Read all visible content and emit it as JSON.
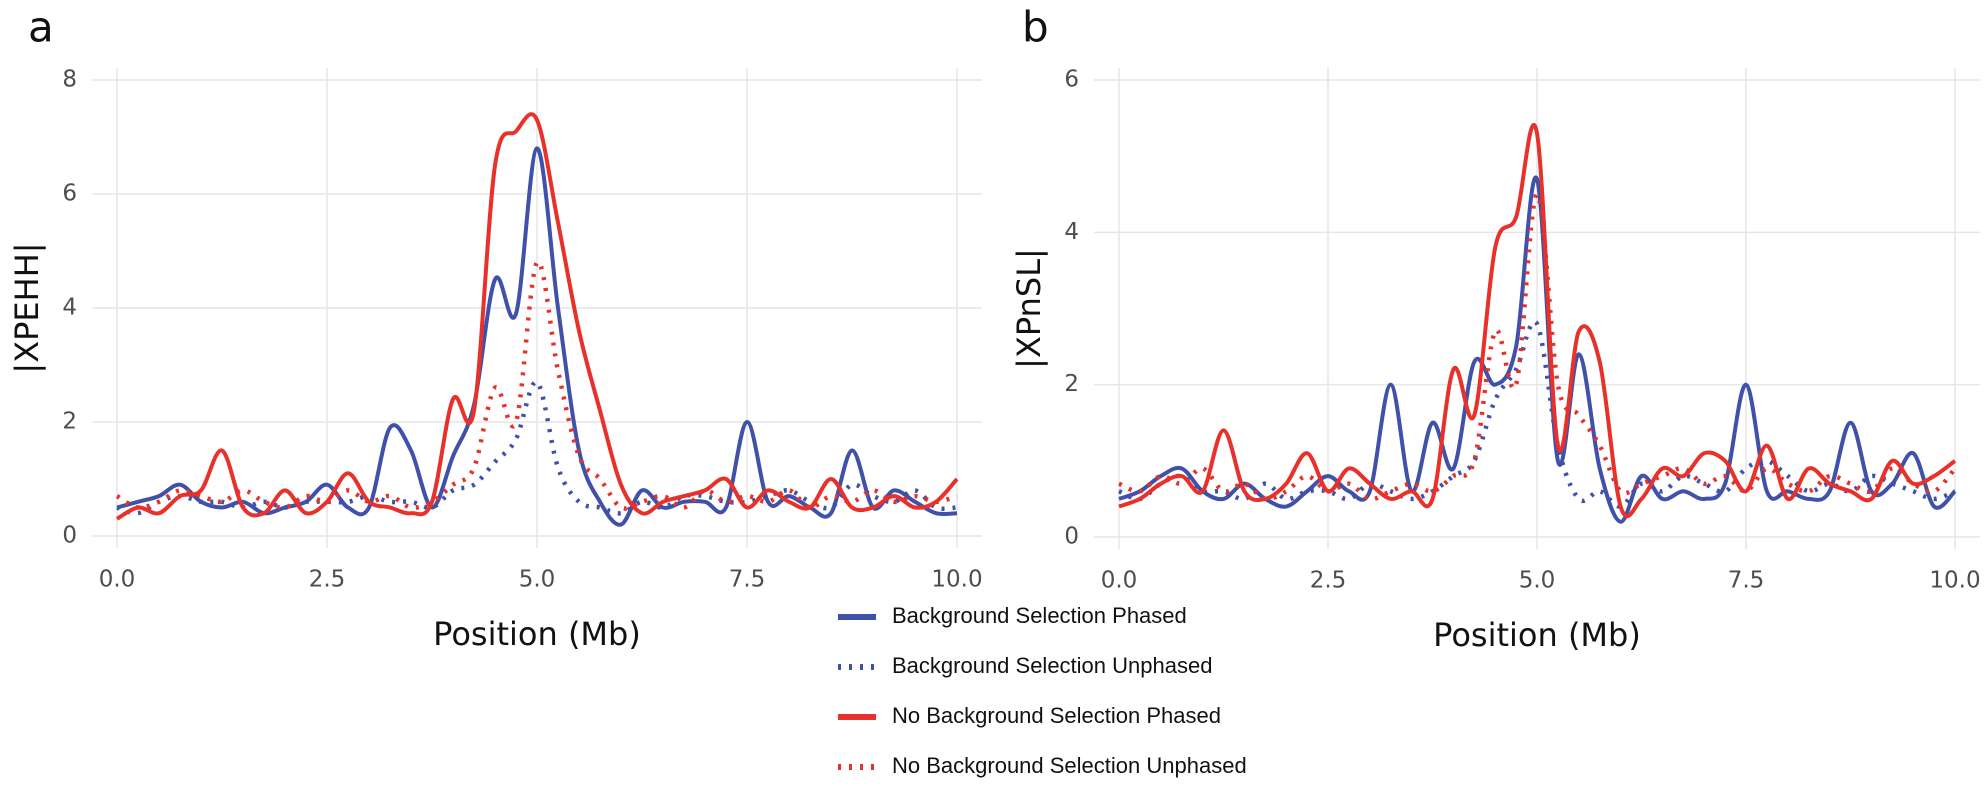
{
  "chart_data": [
    {
      "type": "line",
      "panel_label": "a",
      "ylabel": "|XPEHH|",
      "xlabel": "Position (Mb)",
      "x": [
        0,
        0.25,
        0.5,
        0.75,
        1,
        1.25,
        1.5,
        1.75,
        2,
        2.25,
        2.5,
        2.75,
        3,
        3.25,
        3.5,
        3.75,
        4,
        4.25,
        4.5,
        4.75,
        5,
        5.25,
        5.5,
        5.75,
        6,
        6.25,
        6.5,
        6.75,
        7,
        7.25,
        7.5,
        7.75,
        8,
        8.25,
        8.5,
        8.75,
        9,
        9.25,
        9.5,
        9.75,
        10
      ],
      "xlim": [
        0,
        10
      ],
      "xticks": [
        {
          "value": 0,
          "label": "0.0"
        },
        {
          "value": 2.5,
          "label": "2.5"
        },
        {
          "value": 5,
          "label": "5.0"
        },
        {
          "value": 7.5,
          "label": "7.5"
        },
        {
          "value": 10,
          "label": "10.0"
        }
      ],
      "ylim": [
        0,
        8
      ],
      "yticks": [
        0,
        2,
        4,
        6,
        8
      ],
      "grid": true,
      "series": [
        {
          "color": "#3f51a9",
          "dash": false,
          "values": [
            0.5,
            0.6,
            0.7,
            0.9,
            0.6,
            0.5,
            0.6,
            0.4,
            0.5,
            0.6,
            0.9,
            0.5,
            0.5,
            1.9,
            1.5,
            0.5,
            1.4,
            2.3,
            4.5,
            3.9,
            6.8,
            4.0,
            1.5,
            0.6,
            0.2,
            0.8,
            0.5,
            0.6,
            0.6,
            0.5,
            2.0,
            0.6,
            0.7,
            0.5,
            0.4,
            1.5,
            0.5,
            0.8,
            0.6,
            0.4,
            0.4
          ]
        },
        {
          "color": "#3f51a9",
          "dash": true,
          "values": [
            0.5,
            0.4,
            0.6,
            0.7,
            0.6,
            0.6,
            0.5,
            0.6,
            0.5,
            0.6,
            0.6,
            0.6,
            0.7,
            0.6,
            0.6,
            0.5,
            0.8,
            0.9,
            1.3,
            1.7,
            2.7,
            1.2,
            0.6,
            0.5,
            0.4,
            0.6,
            0.5,
            0.7,
            0.7,
            0.6,
            0.6,
            0.7,
            0.8,
            0.6,
            0.5,
            0.9,
            0.7,
            0.6,
            0.8,
            0.5,
            0.5
          ]
        },
        {
          "color": "#e8312a",
          "dash": false,
          "values": [
            0.3,
            0.5,
            0.4,
            0.7,
            0.8,
            1.5,
            0.5,
            0.4,
            0.8,
            0.4,
            0.6,
            1.1,
            0.6,
            0.5,
            0.4,
            0.6,
            2.4,
            2.2,
            6.5,
            7.1,
            7.3,
            5.5,
            3.6,
            2.2,
            0.9,
            0.4,
            0.6,
            0.7,
            0.8,
            1.0,
            0.5,
            0.8,
            0.6,
            0.5,
            1.0,
            0.5,
            0.5,
            0.7,
            0.5,
            0.6,
            1.0
          ]
        },
        {
          "color": "#e8312a",
          "dash": true,
          "values": [
            0.7,
            0.5,
            0.6,
            0.8,
            0.7,
            0.6,
            0.8,
            0.6,
            0.5,
            0.7,
            0.6,
            0.8,
            0.6,
            0.7,
            0.5,
            0.6,
            0.9,
            1.2,
            2.6,
            2.0,
            4.8,
            2.9,
            1.4,
            1.0,
            0.5,
            0.6,
            0.7,
            0.5,
            0.8,
            0.6,
            0.7,
            0.6,
            0.8,
            0.5,
            0.7,
            0.6,
            0.8,
            0.6,
            0.7,
            0.6,
            0.7
          ]
        }
      ]
    },
    {
      "type": "line",
      "panel_label": "b",
      "ylabel": "|XPnSL|",
      "xlabel": "Position (Mb)",
      "x": [
        0,
        0.25,
        0.5,
        0.75,
        1,
        1.25,
        1.5,
        1.75,
        2,
        2.25,
        2.5,
        2.75,
        3,
        3.25,
        3.5,
        3.75,
        4,
        4.25,
        4.5,
        4.75,
        5,
        5.25,
        5.5,
        5.75,
        6,
        6.25,
        6.5,
        6.75,
        7,
        7.25,
        7.5,
        7.75,
        8,
        8.25,
        8.5,
        8.75,
        9,
        9.25,
        9.5,
        9.75,
        10
      ],
      "xlim": [
        0,
        10
      ],
      "xticks": [
        {
          "value": 0,
          "label": "0.0"
        },
        {
          "value": 2.5,
          "label": "2.5"
        },
        {
          "value": 5,
          "label": "5.0"
        },
        {
          "value": 7.5,
          "label": "7.5"
        },
        {
          "value": 10,
          "label": "10.0"
        }
      ],
      "ylim": [
        0,
        6
      ],
      "yticks": [
        0,
        2,
        4,
        6
      ],
      "grid": true,
      "series": [
        {
          "color": "#3f51a9",
          "dash": false,
          "values": [
            0.5,
            0.6,
            0.8,
            0.9,
            0.6,
            0.5,
            0.7,
            0.5,
            0.4,
            0.6,
            0.8,
            0.6,
            0.6,
            2.0,
            0.6,
            1.5,
            0.9,
            2.3,
            2.0,
            2.5,
            4.7,
            1.0,
            2.4,
            0.9,
            0.2,
            0.8,
            0.5,
            0.6,
            0.5,
            0.7,
            2.0,
            0.6,
            0.6,
            0.5,
            0.6,
            1.5,
            0.6,
            0.7,
            1.1,
            0.4,
            0.6
          ]
        },
        {
          "color": "#3f51a9",
          "dash": true,
          "values": [
            0.6,
            0.5,
            0.7,
            0.8,
            0.6,
            0.6,
            0.5,
            0.7,
            0.5,
            0.6,
            0.6,
            0.5,
            0.7,
            0.6,
            0.5,
            0.6,
            0.8,
            1.0,
            1.8,
            2.2,
            2.8,
            1.2,
            0.5,
            0.6,
            0.4,
            0.7,
            0.6,
            0.8,
            0.7,
            0.6,
            0.9,
            1.0,
            0.8,
            0.6,
            0.7,
            0.6,
            0.8,
            0.7,
            0.6,
            0.5,
            0.6
          ]
        },
        {
          "color": "#e8312a",
          "dash": false,
          "values": [
            0.4,
            0.5,
            0.7,
            0.8,
            0.6,
            1.4,
            0.6,
            0.5,
            0.7,
            1.1,
            0.6,
            0.9,
            0.7,
            0.5,
            0.6,
            0.5,
            2.2,
            1.6,
            3.8,
            4.2,
            5.3,
            1.2,
            2.7,
            2.3,
            0.4,
            0.5,
            0.9,
            0.8,
            1.1,
            1.0,
            0.6,
            1.2,
            0.5,
            0.9,
            0.7,
            0.6,
            0.5,
            1.0,
            0.7,
            0.8,
            1.0
          ]
        },
        {
          "color": "#e8312a",
          "dash": true,
          "values": [
            0.7,
            0.6,
            0.8,
            0.7,
            0.9,
            0.6,
            0.7,
            0.5,
            0.6,
            0.8,
            0.6,
            0.7,
            0.5,
            0.6,
            0.7,
            0.6,
            0.8,
            1.0,
            2.7,
            2.0,
            4.5,
            2.0,
            1.6,
            1.2,
            0.6,
            0.7,
            0.8,
            0.9,
            0.7,
            0.8,
            0.6,
            0.9,
            0.7,
            0.6,
            0.8,
            0.7,
            0.6,
            0.9,
            0.7,
            0.6,
            0.9
          ]
        }
      ]
    }
  ],
  "legend": [
    {
      "name": "Background Selection Phased",
      "color": "#3f51a9",
      "dash": false
    },
    {
      "name": "Background Selection Unphased",
      "color": "#3f51a9",
      "dash": true
    },
    {
      "name": "No Background Selection Phased",
      "color": "#e8312a",
      "dash": false
    },
    {
      "name": "No Background Selection Unphased",
      "color": "#e8312a",
      "dash": true
    }
  ]
}
